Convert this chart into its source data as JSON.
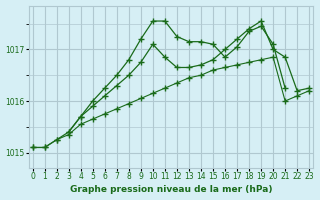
{
  "title": "Graphe pression niveau de la mer (hPa)",
  "bg_color": "#d6eff5",
  "grid_color": "#b0c8d0",
  "line_color": "#1a6b1a",
  "x_ticks": [
    0,
    1,
    2,
    3,
    4,
    5,
    6,
    7,
    8,
    9,
    10,
    11,
    12,
    13,
    14,
    15,
    16,
    17,
    18,
    19,
    20,
    21,
    22,
    23
  ],
  "y_ticks": [
    1015,
    1016,
    1017
  ],
  "ylim": [
    1014.7,
    1017.85
  ],
  "xlim": [
    -0.3,
    23.3
  ],
  "line1_x": [
    0,
    1,
    2,
    3,
    4,
    5,
    6,
    7,
    8,
    9,
    10,
    11,
    12,
    13,
    14,
    15,
    16,
    17,
    18,
    19,
    20,
    21,
    22,
    23
  ],
  "line1_y": [
    1015.1,
    1015.1,
    1015.25,
    1015.35,
    1015.55,
    1015.65,
    1015.75,
    1015.85,
    1015.95,
    1016.05,
    1016.15,
    1016.25,
    1016.35,
    1016.45,
    1016.5,
    1016.6,
    1016.65,
    1016.7,
    1016.75,
    1016.8,
    1016.85,
    1016.0,
    1016.1,
    1016.2
  ],
  "line2_x": [
    0,
    1,
    2,
    3,
    4,
    5,
    6,
    7,
    8,
    9,
    10,
    11,
    12,
    13,
    14,
    15,
    16,
    17,
    18,
    19,
    20,
    21
  ],
  "line2_y": [
    1015.1,
    1015.1,
    1015.25,
    1015.4,
    1015.7,
    1016.0,
    1016.25,
    1016.5,
    1016.8,
    1017.2,
    1017.55,
    1017.55,
    1017.25,
    1017.15,
    1017.15,
    1017.1,
    1016.85,
    1017.05,
    1017.35,
    1017.45,
    1017.1,
    1016.25
  ],
  "line3_x": [
    3,
    4,
    5,
    6,
    7,
    8,
    9,
    10,
    11,
    12,
    13,
    14,
    15,
    16,
    17,
    18,
    19,
    20,
    21,
    22,
    23
  ],
  "line3_y": [
    1015.4,
    1015.7,
    1015.9,
    1016.1,
    1016.3,
    1016.5,
    1016.75,
    1017.1,
    1016.85,
    1016.65,
    1016.65,
    1016.7,
    1016.8,
    1017.0,
    1017.2,
    1017.4,
    1017.55,
    1017.0,
    1016.85,
    1016.2,
    1016.25
  ],
  "lw1": 0.8,
  "lw2": 0.9,
  "lw3": 0.9
}
